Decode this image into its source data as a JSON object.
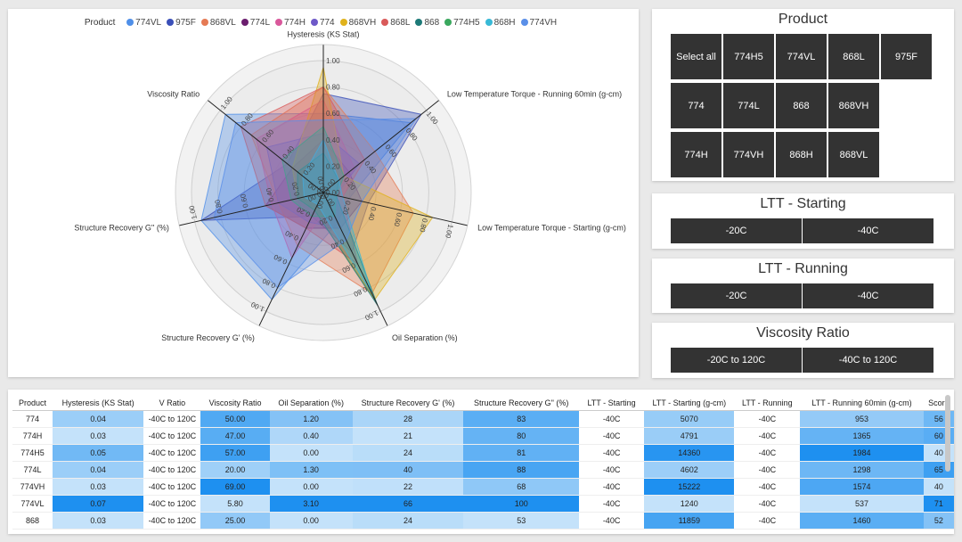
{
  "colors": {
    "text": "#333333",
    "tile_bg": "#333333"
  },
  "legend": {
    "title": "Product",
    "items": [
      {
        "label": "774VL",
        "color": "#4f8fe8"
      },
      {
        "label": "975F",
        "color": "#3a4fb8"
      },
      {
        "label": "868VL",
        "color": "#e57a54"
      },
      {
        "label": "774L",
        "color": "#6b1d6e"
      },
      {
        "label": "774H",
        "color": "#d9589b"
      },
      {
        "label": "774",
        "color": "#6e59c8"
      },
      {
        "label": "868VH",
        "color": "#e0b21c"
      },
      {
        "label": "868L",
        "color": "#d95a5a"
      },
      {
        "label": "868",
        "color": "#1d7a78"
      },
      {
        "label": "774H5",
        "color": "#3aa85e"
      },
      {
        "label": "868H",
        "color": "#38b9d6"
      },
      {
        "label": "774VH",
        "color": "#5a8fe8"
      }
    ]
  },
  "chart_data": {
    "type": "radar",
    "axes": [
      "Hysteresis (KS Stat)",
      "Low Temperature Torque - Running 60min (g-cm)",
      "Low Temperature Torque - Starting (g-cm)",
      "Oil Separation (%)",
      "Structure Recovery G' (%)",
      "Structure Recovery G'' (%)",
      "Viscosity Ratio"
    ],
    "axis_range": [
      0,
      1
    ],
    "ticks": [
      "0.00",
      "0.20",
      "0.40",
      "0.60",
      "0.80",
      "1.00"
    ],
    "series": [
      {
        "name": "774VL",
        "values": [
          0.6,
          0.85,
          0.2,
          0.25,
          0.9,
          0.95,
          0.95
        ]
      },
      {
        "name": "975F",
        "values": [
          0.75,
          0.95,
          0.35,
          0.5,
          0.2,
          0.95,
          0.35
        ]
      },
      {
        "name": "868VL",
        "values": [
          0.8,
          0.5,
          0.7,
          0.85,
          0.45,
          0.35,
          0.7
        ]
      },
      {
        "name": "774L",
        "values": [
          0.4,
          0.25,
          0.3,
          0.3,
          0.3,
          0.45,
          0.3
        ]
      },
      {
        "name": "774H",
        "values": [
          0.7,
          0.3,
          0.15,
          0.1,
          0.55,
          0.4,
          0.65
        ]
      },
      {
        "name": "774",
        "values": [
          0.45,
          0.35,
          0.1,
          0.3,
          0.25,
          0.35,
          0.55
        ]
      },
      {
        "name": "868VH",
        "values": [
          0.95,
          0.2,
          0.85,
          0.9,
          0.15,
          0.2,
          0.3
        ]
      },
      {
        "name": "868L",
        "values": [
          0.8,
          0.4,
          0.15,
          0.6,
          0.3,
          0.45,
          0.8
        ]
      },
      {
        "name": "868",
        "values": [
          0.3,
          0.15,
          0.1,
          0.95,
          0.15,
          0.2,
          0.25
        ]
      },
      {
        "name": "774H5",
        "values": [
          0.5,
          0.2,
          0.1,
          0.2,
          0.2,
          0.25,
          0.4
        ]
      },
      {
        "name": "868H",
        "values": [
          0.4,
          0.15,
          0.15,
          0.85,
          0.1,
          0.15,
          0.2
        ]
      },
      {
        "name": "774VH",
        "values": [
          0.55,
          0.9,
          0.3,
          0.4,
          0.8,
          0.85,
          0.85
        ]
      }
    ]
  },
  "slicers": {
    "product": {
      "title": "Product",
      "tiles": [
        "Select all",
        "774H5",
        "774VL",
        "868L",
        "975F",
        "774",
        "774L",
        "868",
        "868VH",
        "774H",
        "774VH",
        "868H",
        "868VL"
      ]
    },
    "ltt_starting": {
      "title": "LTT - Starting",
      "tiles": [
        "-20C",
        "-40C"
      ]
    },
    "ltt_running": {
      "title": "LTT - Running",
      "tiles": [
        "-20C",
        "-40C"
      ]
    },
    "viscosity_ratio": {
      "title": "Viscosity Ratio",
      "tiles": [
        "-20C to 120C",
        "-40C to 120C"
      ]
    }
  },
  "table": {
    "columns": [
      "Product",
      "Hysteresis (KS Stat)",
      "V Ratio",
      "Viscosity Ratio",
      "Oil Separation (%)",
      "Structure Recovery G' (%)",
      "Structure Recovery G'' (%)",
      "LTT - Starting",
      "LTT - Starting (g-cm)",
      "LTT - Running",
      "LTT - Running 60min (g-cm)",
      "Score"
    ],
    "rows": [
      [
        "774",
        "0.04",
        "-40C to 120C",
        "50.00",
        "1.20",
        "28",
        "83",
        "-40C",
        "5070",
        "-40C",
        "953",
        "56"
      ],
      [
        "774H",
        "0.03",
        "-40C to 120C",
        "47.00",
        "0.40",
        "21",
        "80",
        "-40C",
        "4791",
        "-40C",
        "1365",
        "60"
      ],
      [
        "774H5",
        "0.05",
        "-40C to 120C",
        "57.00",
        "0.00",
        "24",
        "81",
        "-40C",
        "14360",
        "-40C",
        "1984",
        "40"
      ],
      [
        "774L",
        "0.04",
        "-40C to 120C",
        "20.00",
        "1.30",
        "40",
        "88",
        "-40C",
        "4602",
        "-40C",
        "1298",
        "65"
      ],
      [
        "774VH",
        "0.03",
        "-40C to 120C",
        "69.00",
        "0.00",
        "22",
        "68",
        "-40C",
        "15222",
        "-40C",
        "1574",
        "40"
      ],
      [
        "774VL",
        "0.07",
        "-40C to 120C",
        "5.80",
        "3.10",
        "66",
        "100",
        "-40C",
        "1240",
        "-40C",
        "537",
        "71"
      ],
      [
        "868",
        "0.03",
        "-40C to 120C",
        "25.00",
        "0.00",
        "24",
        "53",
        "-40C",
        "11859",
        "-40C",
        "1460",
        "52"
      ]
    ]
  }
}
